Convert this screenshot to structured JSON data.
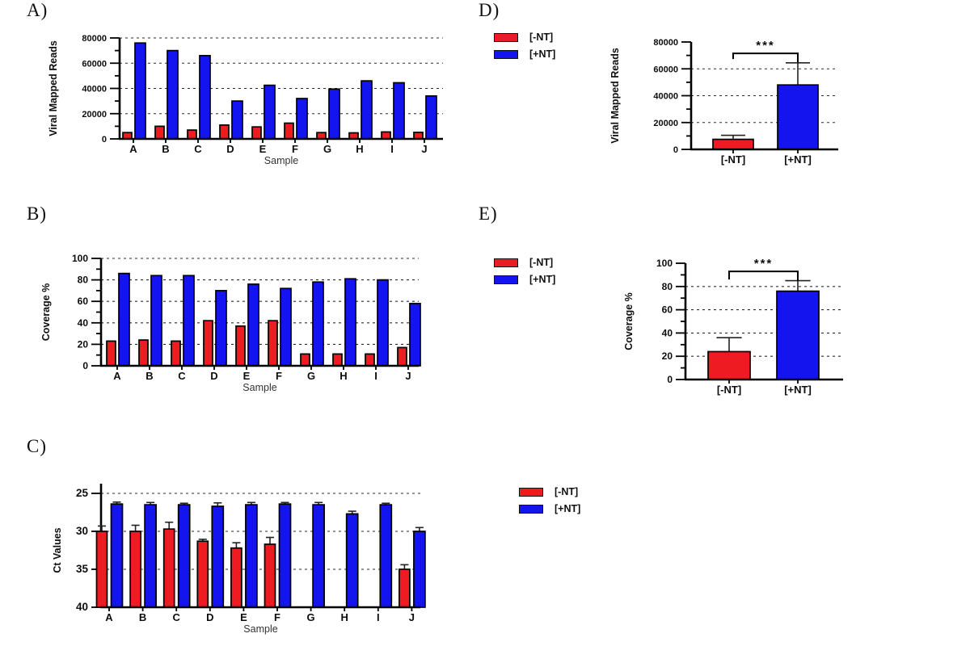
{
  "colors": {
    "red": "#ee1b22",
    "blue": "#1414ee"
  },
  "panels": {
    "a": "A)",
    "b": "B)",
    "c": "C)",
    "d": "D)",
    "e": "E)"
  },
  "legend": {
    "items": [
      {
        "label": "[-NT]",
        "color": "red"
      },
      {
        "label": "[+NT]",
        "color": "blue"
      }
    ]
  },
  "chart_data": [
    {
      "id": "A",
      "type": "bar",
      "panel": "A",
      "ylabel": "Viral Mapped Reads",
      "xlabel": "Sample",
      "categories": [
        "A",
        "B",
        "C",
        "D",
        "E",
        "F",
        "G",
        "H",
        "I",
        "J"
      ],
      "ylim": [
        0,
        80000
      ],
      "yticks": [
        0,
        20000,
        40000,
        60000,
        80000
      ],
      "minor_step": 10000,
      "grid_at": [
        20000,
        40000,
        60000,
        80000
      ],
      "legend_position": "none",
      "series": [
        {
          "name": "[-NT]",
          "color": "red",
          "values": [
            5000,
            10000,
            7000,
            11000,
            9500,
            12500,
            5000,
            4800,
            5500,
            5200
          ]
        },
        {
          "name": "[+NT]",
          "color": "blue",
          "values": [
            76000,
            70000,
            66000,
            30000,
            42500,
            32000,
            39500,
            46000,
            44500,
            34000
          ]
        }
      ]
    },
    {
      "id": "B",
      "type": "bar",
      "panel": "B",
      "ylabel": "Coverage %",
      "xlabel": "Sample",
      "categories": [
        "A",
        "B",
        "C",
        "D",
        "E",
        "F",
        "G",
        "H",
        "I",
        "J"
      ],
      "ylim": [
        0,
        100
      ],
      "yticks": [
        0,
        20,
        40,
        60,
        80,
        100
      ],
      "minor_step": 10,
      "grid_at": [
        20,
        40,
        60,
        80,
        100
      ],
      "legend_position": "none",
      "series": [
        {
          "name": "[-NT]",
          "color": "red",
          "values": [
            23,
            24,
            23,
            42,
            37,
            42,
            11,
            11,
            11,
            17
          ]
        },
        {
          "name": "[+NT]",
          "color": "blue",
          "values": [
            86,
            84,
            84,
            70,
            76,
            72,
            78,
            81,
            80,
            58
          ]
        }
      ]
    },
    {
      "id": "C",
      "type": "bar",
      "panel": "C",
      "ylabel": "Ct Values",
      "xlabel": "Sample",
      "categories": [
        "A",
        "B",
        "C",
        "D",
        "E",
        "F",
        "G",
        "H",
        "I",
        "J"
      ],
      "ylim": [
        25,
        40
      ],
      "inverted": true,
      "yticks": [
        25,
        30,
        35,
        40
      ],
      "grid_at": [
        25,
        30,
        35
      ],
      "legend_position": "right",
      "series": [
        {
          "name": "[-NT]",
          "color": "red",
          "values": [
            30.0,
            30.0,
            29.7,
            31.3,
            32.2,
            31.7,
            null,
            null,
            null,
            35.0
          ],
          "errors": [
            0.7,
            0.8,
            0.9,
            0.25,
            0.7,
            0.9,
            null,
            null,
            null,
            0.6
          ]
        },
        {
          "name": "[+NT]",
          "color": "blue",
          "values": [
            26.4,
            26.5,
            26.5,
            26.7,
            26.5,
            26.4,
            26.5,
            27.7,
            26.5,
            30.0
          ],
          "errors": [
            0.25,
            0.3,
            0.2,
            0.45,
            0.3,
            0.2,
            0.3,
            0.35,
            0.2,
            0.5
          ]
        }
      ]
    },
    {
      "id": "D",
      "type": "bar",
      "panel": "D",
      "ylabel": "Viral Mapped Reads",
      "xlabel": "",
      "categories": [
        "[-NT]",
        "[+NT]"
      ],
      "ylim": [
        0,
        80000
      ],
      "yticks": [
        0,
        20000,
        40000,
        60000,
        80000
      ],
      "minor_step": 10000,
      "grid_at": [
        20000,
        40000,
        60000
      ],
      "legend_position": "left",
      "bars": [
        {
          "label": "[-NT]",
          "color": "red",
          "value": 7500,
          "error": 3000
        },
        {
          "label": "[+NT]",
          "color": "blue",
          "value": 48000,
          "error": 16500
        }
      ],
      "significance": {
        "label": "***",
        "at": 71500
      }
    },
    {
      "id": "E",
      "type": "bar",
      "panel": "E",
      "ylabel": "Coverage %",
      "xlabel": "",
      "categories": [
        "[-NT]",
        "[+NT]"
      ],
      "ylim": [
        0,
        100
      ],
      "yticks": [
        0,
        20,
        40,
        60,
        80,
        100
      ],
      "minor_step": 10,
      "grid_at": [
        20,
        40,
        60,
        80
      ],
      "legend_position": "left",
      "bars": [
        {
          "label": "[-NT]",
          "color": "red",
          "value": 24,
          "error": 12
        },
        {
          "label": "[+NT]",
          "color": "blue",
          "value": 76,
          "error": 9
        }
      ],
      "significance": {
        "label": "***",
        "at": 93
      }
    }
  ]
}
